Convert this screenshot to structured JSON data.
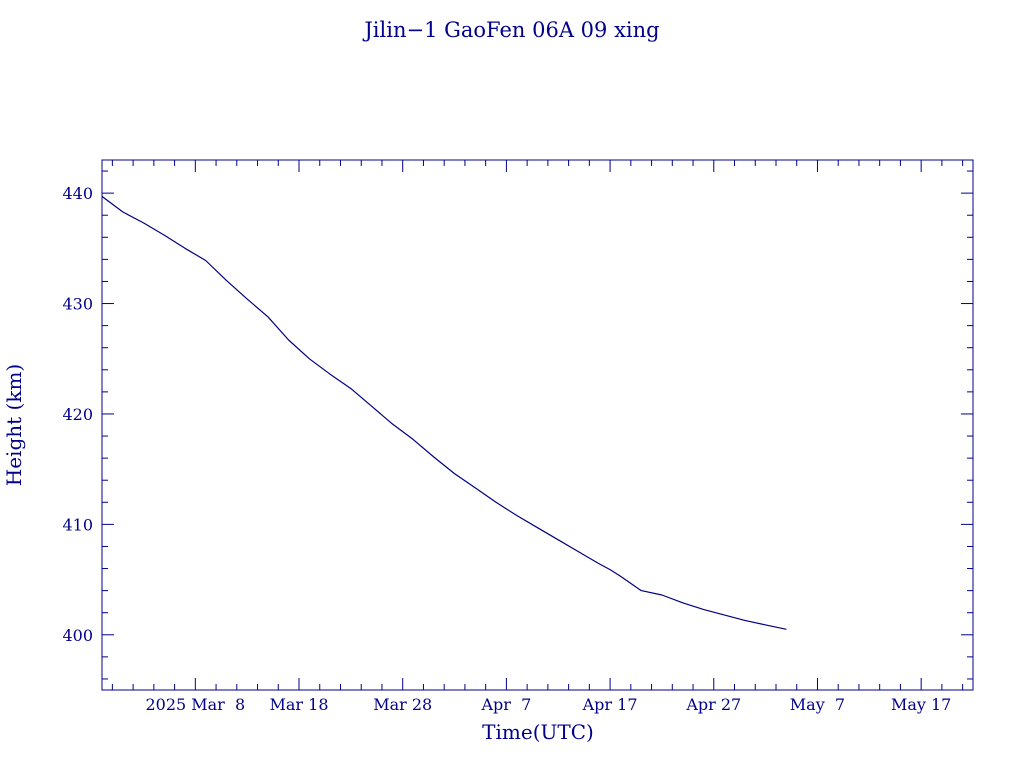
{
  "chart_data": {
    "type": "line",
    "title": "Jilin−1 GaoFen 06A 09 xing",
    "xlabel": "Time(UTC)",
    "ylabel": "Height (km)",
    "x_tick_labels": [
      "2025 Mar  8",
      "Mar 18",
      "Mar 28",
      "Apr  7",
      "Apr 17",
      "Apr 27",
      "May  7",
      "May 17"
    ],
    "x_tick_dates": [
      "2025-03-08",
      "2025-03-18",
      "2025-03-28",
      "2025-04-07",
      "2025-04-17",
      "2025-04-27",
      "2025-05-07",
      "2025-05-17"
    ],
    "xlim": [
      "2025-02-27",
      "2025-05-22"
    ],
    "y_ticks": [
      400,
      410,
      420,
      430,
      440
    ],
    "ylim": [
      395,
      443
    ],
    "grid": false,
    "colors": {
      "line": "#000080",
      "frame": "#00008b",
      "text": "#00008b"
    },
    "series": [
      {
        "x": [
          "2025-02-27",
          "2025-03-01",
          "2025-03-03",
          "2025-03-05",
          "2025-03-07",
          "2025-03-09",
          "2025-03-11",
          "2025-03-13",
          "2025-03-15",
          "2025-03-17",
          "2025-03-19",
          "2025-03-21",
          "2025-03-23",
          "2025-03-25",
          "2025-03-27",
          "2025-03-29",
          "2025-03-31",
          "2025-04-02",
          "2025-04-04",
          "2025-04-06",
          "2025-04-08",
          "2025-04-10",
          "2025-04-12",
          "2025-04-14",
          "2025-04-16",
          "2025-04-17",
          "2025-04-18",
          "2025-04-20",
          "2025-04-22",
          "2025-04-24",
          "2025-04-26",
          "2025-04-28",
          "2025-04-30",
          "2025-05-02",
          "2025-05-04"
        ],
        "y": [
          439.7,
          438.3,
          437.3,
          436.2,
          435.0,
          433.9,
          432.1,
          430.4,
          428.8,
          426.7,
          425.0,
          423.6,
          422.3,
          420.7,
          419.1,
          417.7,
          416.1,
          414.6,
          413.3,
          412.0,
          410.8,
          409.7,
          408.6,
          407.5,
          406.4,
          405.9,
          405.3,
          404.0,
          403.6,
          402.9,
          402.3,
          401.8,
          401.3,
          400.9,
          400.5
        ]
      }
    ]
  }
}
